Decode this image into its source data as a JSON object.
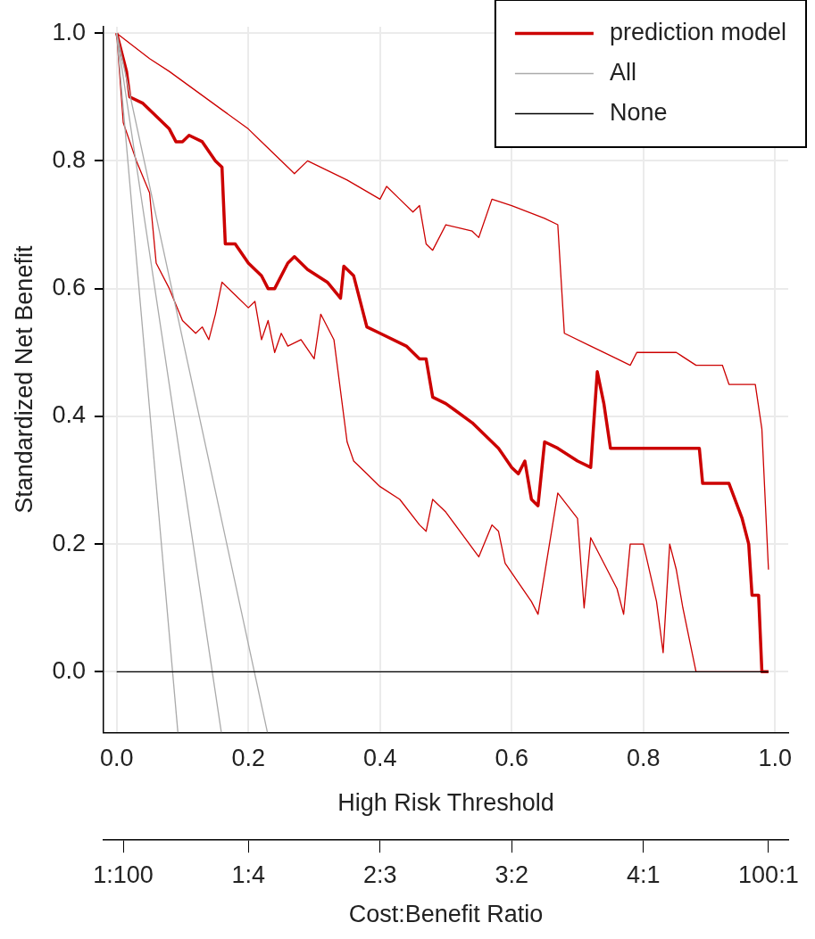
{
  "chart_data": {
    "type": "line",
    "xlabel": "High Risk Threshold",
    "ylabel": "Standardized Net Benefit",
    "x2label": "Cost:Benefit Ratio",
    "xlim": [
      -0.02,
      1.02
    ],
    "xticks": [
      {
        "value": 0,
        "label": "0.0"
      },
      0.2,
      0.4,
      0.6,
      0.8,
      {
        "value": 1,
        "label": "1.0"
      }
    ],
    "ylim": [
      -0.095,
      1.01
    ],
    "yticks": [
      {
        "value": 0,
        "label": "0.0"
      },
      0.2,
      0.4,
      0.6,
      0.8,
      {
        "value": 1,
        "label": "1.0"
      }
    ],
    "annotations": [
      {
        "text": "1:100",
        "x": 0.01
      },
      {
        "text": "1:4",
        "x": 0.2
      },
      {
        "text": "2:3",
        "x": 0.4
      },
      {
        "text": "3:2",
        "x": 0.6
      },
      {
        "text": "4:1",
        "x": 0.8
      },
      {
        "text": "100:1",
        "x": 0.99
      }
    ],
    "grid": true,
    "legend": "top right",
    "marker": "none",
    "line_style": "solid",
    "series": [
      {
        "name": "prediction model",
        "color": "#cc0000",
        "x": [
          0,
          0.015,
          0.02,
          0.04,
          0.06,
          0.08,
          0.09,
          0.1,
          0.11,
          0.13,
          0.15,
          0.16,
          0.165,
          0.18,
          0.2,
          0.22,
          0.23,
          0.24,
          0.26,
          0.27,
          0.29,
          0.32,
          0.34,
          0.345,
          0.36,
          0.38,
          0.4,
          0.44,
          0.46,
          0.47,
          0.48,
          0.5,
          0.54,
          0.58,
          0.6,
          0.61,
          0.62,
          0.625,
          0.63,
          0.64,
          0.65,
          0.67,
          0.7,
          0.72,
          0.73,
          0.74,
          0.75,
          0.8,
          0.885,
          0.89,
          0.93,
          0.95,
          0.96,
          0.965,
          0.975,
          0.98,
          0.99
        ],
        "values": [
          1.0,
          0.94,
          0.9,
          0.89,
          0.87,
          0.85,
          0.83,
          0.83,
          0.84,
          0.83,
          0.8,
          0.79,
          0.67,
          0.67,
          0.64,
          0.62,
          0.6,
          0.6,
          0.64,
          0.65,
          0.63,
          0.61,
          0.585,
          0.635,
          0.62,
          0.54,
          0.53,
          0.51,
          0.49,
          0.49,
          0.43,
          0.42,
          0.39,
          0.35,
          0.32,
          0.31,
          0.33,
          0.3,
          0.27,
          0.26,
          0.36,
          0.35,
          0.33,
          0.32,
          0.47,
          0.42,
          0.35,
          0.35,
          0.35,
          0.295,
          0.295,
          0.24,
          0.2,
          0.12,
          0.12,
          0.0,
          0.0
        ]
      },
      {
        "color": "#cc0000",
        "x": [
          0,
          0.05,
          0.08,
          0.12,
          0.16,
          0.2,
          0.22,
          0.24,
          0.26,
          0.27,
          0.29,
          0.35,
          0.4,
          0.41,
          0.43,
          0.45,
          0.46,
          0.47,
          0.48,
          0.5,
          0.54,
          0.55,
          0.57,
          0.6,
          0.65,
          0.67,
          0.68,
          0.72,
          0.76,
          0.78,
          0.79,
          0.85,
          0.88,
          0.92,
          0.93,
          0.97,
          0.98,
          0.99
        ],
        "values": [
          1.0,
          0.96,
          0.94,
          0.91,
          0.88,
          0.85,
          0.83,
          0.81,
          0.79,
          0.78,
          0.8,
          0.77,
          0.74,
          0.76,
          0.74,
          0.72,
          0.73,
          0.67,
          0.66,
          0.7,
          0.69,
          0.68,
          0.74,
          0.73,
          0.71,
          0.7,
          0.53,
          0.51,
          0.49,
          0.48,
          0.5,
          0.5,
          0.48,
          0.48,
          0.45,
          0.45,
          0.38,
          0.16
        ]
      },
      {
        "color": "#cc0000",
        "x": [
          0,
          0.01,
          0.03,
          0.05,
          0.06,
          0.08,
          0.1,
          0.12,
          0.13,
          0.14,
          0.15,
          0.16,
          0.18,
          0.2,
          0.21,
          0.22,
          0.23,
          0.24,
          0.25,
          0.26,
          0.28,
          0.3,
          0.31,
          0.33,
          0.35,
          0.36,
          0.38,
          0.4,
          0.43,
          0.46,
          0.47,
          0.48,
          0.5,
          0.55,
          0.57,
          0.58,
          0.59,
          0.63,
          0.64,
          0.67,
          0.7,
          0.71,
          0.72,
          0.76,
          0.77,
          0.78,
          0.8,
          0.82,
          0.83,
          0.84,
          0.85,
          0.86,
          0.87,
          0.88,
          0.99
        ],
        "values": [
          1.0,
          0.86,
          0.8,
          0.75,
          0.64,
          0.6,
          0.55,
          0.53,
          0.54,
          0.52,
          0.56,
          0.61,
          0.59,
          0.57,
          0.58,
          0.52,
          0.55,
          0.5,
          0.53,
          0.51,
          0.52,
          0.49,
          0.56,
          0.52,
          0.36,
          0.33,
          0.31,
          0.29,
          0.27,
          0.23,
          0.22,
          0.27,
          0.25,
          0.18,
          0.23,
          0.22,
          0.17,
          0.11,
          0.09,
          0.28,
          0.24,
          0.1,
          0.21,
          0.13,
          0.09,
          0.2,
          0.2,
          0.11,
          0.03,
          0.2,
          0.16,
          0.1,
          0.05,
          0.0,
          0.0
        ]
      },
      {
        "name": "All",
        "color": "#aaaaaa",
        "x": [
          0,
          0.159
        ],
        "values": [
          1.0,
          -0.095
        ]
      },
      {
        "color": "#aaaaaa",
        "x": [
          0,
          0.093
        ],
        "values": [
          1.0,
          -0.095
        ]
      },
      {
        "color": "#aaaaaa",
        "x": [
          0,
          0.229
        ],
        "values": [
          1.0,
          -0.095
        ]
      },
      {
        "name": "None",
        "color": "#000000",
        "x": [
          0,
          0.99
        ],
        "values": [
          0,
          0
        ]
      }
    ]
  }
}
